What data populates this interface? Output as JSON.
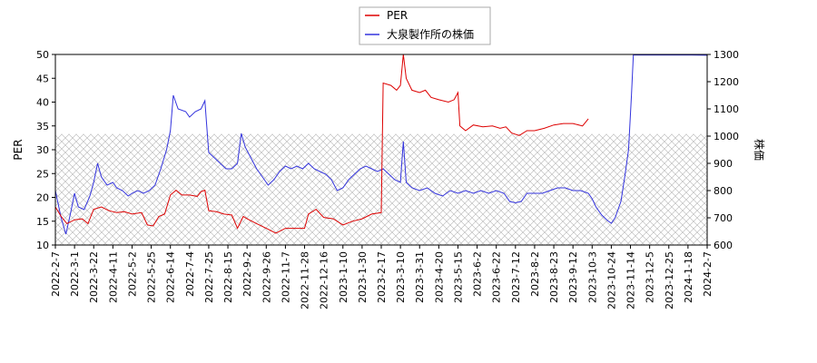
{
  "chart_data": {
    "type": "line",
    "x_ticks": [
      "2022-2-7",
      "2022-3-1",
      "2022-3-22",
      "2022-4-11",
      "2022-5-2",
      "2022-5-25",
      "2022-6-14",
      "2022-7-4",
      "2022-7-25",
      "2022-8-15",
      "2022-9-2",
      "2022-9-26",
      "2022-11-7",
      "2022-11-28",
      "2022-12-16",
      "2023-1-10",
      "2023-1-30",
      "2023-2-17",
      "2023-3-10",
      "2023-3-31",
      "2023-4-20",
      "2023-5-15",
      "2023-6-2",
      "2023-6-22",
      "2023-7-12",
      "2023-8-2",
      "2023-8-23",
      "2023-9-12",
      "2023-10-3",
      "2023-10-24",
      "2023-11-14",
      "2023-12-5",
      "2023-12-25",
      "2024-1-18",
      "2024-2-7"
    ],
    "left_axis": {
      "label": "PER",
      "ylim": [
        10,
        50
      ],
      "ticks": [
        10,
        15,
        20,
        25,
        30,
        35,
        40,
        45,
        50
      ]
    },
    "right_axis": {
      "label": "株価",
      "ylim": [
        600,
        1300
      ],
      "ticks": [
        600,
        700,
        800,
        900,
        1000,
        1100,
        1200,
        1300
      ]
    },
    "legend": {
      "placement": "top-center"
    },
    "hatched_band": {
      "range_left_axis": [
        10,
        33.3
      ]
    },
    "series": [
      {
        "name": "PER",
        "axis": "left",
        "color": "#dd0000",
        "points": [
          [
            0,
            18
          ],
          [
            0.3,
            16
          ],
          [
            0.6,
            14.5
          ],
          [
            1,
            15.3
          ],
          [
            1.4,
            15.5
          ],
          [
            1.7,
            14.5
          ],
          [
            2,
            17.5
          ],
          [
            2.4,
            18
          ],
          [
            2.8,
            17.2
          ],
          [
            3.2,
            16.8
          ],
          [
            3.6,
            17
          ],
          [
            4,
            16.5
          ],
          [
            4.5,
            16.8
          ],
          [
            4.8,
            14.2
          ],
          [
            5.1,
            14
          ],
          [
            5.4,
            16
          ],
          [
            5.7,
            16.5
          ],
          [
            6,
            20.5
          ],
          [
            6.3,
            21.5
          ],
          [
            6.6,
            20.5
          ],
          [
            7,
            20.5
          ],
          [
            7.4,
            20.2
          ],
          [
            7.6,
            21.2
          ],
          [
            7.8,
            21.5
          ],
          [
            8,
            17.2
          ],
          [
            8.4,
            17
          ],
          [
            8.8,
            16.5
          ],
          [
            9.2,
            16.3
          ],
          [
            9.5,
            13.5
          ],
          [
            9.8,
            16
          ],
          [
            10,
            15.5
          ],
          [
            10.5,
            14.5
          ],
          [
            11,
            13.5
          ],
          [
            11.5,
            12.5
          ],
          [
            12,
            13.5
          ],
          [
            12.5,
            13.5
          ],
          [
            13,
            13.5
          ],
          [
            13.2,
            16.5
          ],
          [
            13.6,
            17.5
          ],
          [
            14,
            15.8
          ],
          [
            14.5,
            15.5
          ],
          [
            15,
            14.2
          ],
          [
            15.5,
            15
          ],
          [
            16,
            15.5
          ],
          [
            16.5,
            16.5
          ],
          [
            17,
            16.8
          ],
          [
            17.1,
            44
          ],
          [
            17.5,
            43.5
          ],
          [
            17.8,
            42.5
          ],
          [
            18,
            43.5
          ],
          [
            18.15,
            50
          ],
          [
            18.3,
            45
          ],
          [
            18.6,
            42.5
          ],
          [
            19,
            42
          ],
          [
            19.3,
            42.5
          ],
          [
            19.6,
            41
          ],
          [
            20,
            40.5
          ],
          [
            20.5,
            40
          ],
          [
            20.8,
            40.5
          ],
          [
            21,
            42
          ],
          [
            21.1,
            35
          ],
          [
            21.4,
            34
          ],
          [
            21.8,
            35.2
          ],
          [
            22.3,
            34.8
          ],
          [
            22.8,
            35
          ],
          [
            23.2,
            34.5
          ],
          [
            23.5,
            34.8
          ],
          [
            23.8,
            33.5
          ],
          [
            24.2,
            33
          ],
          [
            24.6,
            34
          ],
          [
            25,
            34
          ],
          [
            25.5,
            34.5
          ],
          [
            26,
            35.2
          ],
          [
            26.5,
            35.5
          ],
          [
            27,
            35.5
          ],
          [
            27.5,
            35
          ],
          [
            27.8,
            36.5
          ]
        ]
      },
      {
        "name": "大泉製作所の株価",
        "axis": "right",
        "color": "#3333dd",
        "points": [
          [
            0,
            800
          ],
          [
            0.3,
            700
          ],
          [
            0.55,
            640
          ],
          [
            0.8,
            720
          ],
          [
            1,
            790
          ],
          [
            1.2,
            740
          ],
          [
            1.5,
            730
          ],
          [
            1.8,
            780
          ],
          [
            2,
            830
          ],
          [
            2.2,
            900
          ],
          [
            2.4,
            850
          ],
          [
            2.7,
            820
          ],
          [
            3,
            830
          ],
          [
            3.2,
            810
          ],
          [
            3.5,
            800
          ],
          [
            3.8,
            780
          ],
          [
            4,
            790
          ],
          [
            4.3,
            800
          ],
          [
            4.6,
            790
          ],
          [
            4.9,
            800
          ],
          [
            5.2,
            820
          ],
          [
            5.5,
            880
          ],
          [
            5.8,
            950
          ],
          [
            6,
            1020
          ],
          [
            6.15,
            1150
          ],
          [
            6.4,
            1100
          ],
          [
            6.8,
            1090
          ],
          [
            7,
            1070
          ],
          [
            7.3,
            1090
          ],
          [
            7.6,
            1100
          ],
          [
            7.8,
            1130
          ],
          [
            8,
            940
          ],
          [
            8.3,
            920
          ],
          [
            8.6,
            900
          ],
          [
            8.9,
            880
          ],
          [
            9.2,
            880
          ],
          [
            9.5,
            900
          ],
          [
            9.7,
            1010
          ],
          [
            9.9,
            960
          ],
          [
            10.2,
            920
          ],
          [
            10.5,
            880
          ],
          [
            10.8,
            850
          ],
          [
            11.1,
            820
          ],
          [
            11.4,
            840
          ],
          [
            11.7,
            870
          ],
          [
            12,
            890
          ],
          [
            12.3,
            880
          ],
          [
            12.6,
            890
          ],
          [
            12.9,
            880
          ],
          [
            13.2,
            900
          ],
          [
            13.5,
            880
          ],
          [
            13.8,
            870
          ],
          [
            14.1,
            860
          ],
          [
            14.4,
            840
          ],
          [
            14.7,
            800
          ],
          [
            15,
            810
          ],
          [
            15.3,
            840
          ],
          [
            15.6,
            860
          ],
          [
            15.9,
            880
          ],
          [
            16.2,
            890
          ],
          [
            16.5,
            880
          ],
          [
            16.8,
            870
          ],
          [
            17.1,
            880
          ],
          [
            17.4,
            860
          ],
          [
            17.7,
            840
          ],
          [
            18,
            830
          ],
          [
            18.15,
            980
          ],
          [
            18.3,
            830
          ],
          [
            18.6,
            810
          ],
          [
            19,
            800
          ],
          [
            19.4,
            810
          ],
          [
            19.8,
            790
          ],
          [
            20.2,
            780
          ],
          [
            20.6,
            800
          ],
          [
            21,
            790
          ],
          [
            21.4,
            800
          ],
          [
            21.8,
            790
          ],
          [
            22.2,
            800
          ],
          [
            22.6,
            790
          ],
          [
            23,
            800
          ],
          [
            23.4,
            790
          ],
          [
            23.7,
            760
          ],
          [
            24,
            755
          ],
          [
            24.3,
            760
          ],
          [
            24.6,
            790
          ],
          [
            25,
            790
          ],
          [
            25.4,
            790
          ],
          [
            25.8,
            800
          ],
          [
            26.2,
            810
          ],
          [
            26.6,
            810
          ],
          [
            27,
            800
          ],
          [
            27.4,
            800
          ],
          [
            27.8,
            790
          ],
          [
            28,
            770
          ],
          [
            28.2,
            740
          ],
          [
            28.5,
            710
          ],
          [
            28.8,
            690
          ],
          [
            29,
            680
          ],
          [
            29.2,
            700
          ],
          [
            29.5,
            760
          ],
          [
            29.7,
            850
          ],
          [
            29.9,
            950
          ],
          [
            30.05,
            1150
          ],
          [
            30.15,
            1298
          ],
          [
            31,
            1298
          ],
          [
            32,
            1298
          ],
          [
            33,
            1298
          ],
          [
            34,
            1297
          ]
        ]
      }
    ]
  }
}
